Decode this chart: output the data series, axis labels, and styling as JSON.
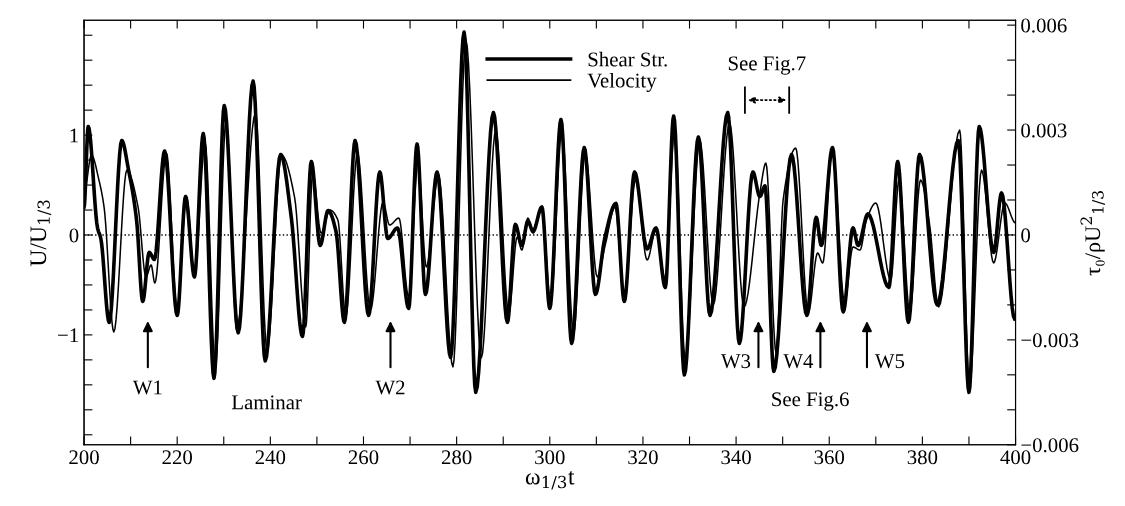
{
  "chart_data": {
    "type": "line",
    "xlabel": "ω$_{1/3}$t",
    "ylabel": "U/U$_{1/3}$",
    "y2label": "τ₀/ρU$^{2}$$_{1/3}$",
    "xlim": [
      200,
      400
    ],
    "xticks": [
      200,
      {
        "value": 210,
        "label": null
      },
      220,
      {
        "value": 230,
        "label": null
      },
      240,
      {
        "value": 250,
        "label": null
      },
      260,
      {
        "value": 270,
        "label": null
      },
      280,
      {
        "value": 290,
        "label": null
      },
      300,
      {
        "value": 310,
        "label": null
      },
      320,
      {
        "value": 330,
        "label": null
      },
      340,
      {
        "value": 350,
        "label": null
      },
      360,
      {
        "value": 370,
        "label": null
      },
      380,
      {
        "value": 390,
        "label": null
      },
      400
    ],
    "ylim": [
      -2.1,
      2.15
    ],
    "yticks": [
      {
        "value": -2,
        "label": null
      },
      {
        "value": -1.75,
        "label": null
      },
      {
        "value": -1.5,
        "label": null
      },
      {
        "value": -1.25,
        "label": null
      },
      {
        "value": -1,
        "label": "−1"
      },
      {
        "value": -0.75,
        "label": null
      },
      {
        "value": -0.5,
        "label": null
      },
      {
        "value": -0.25,
        "label": null
      },
      0,
      {
        "value": 0.25,
        "label": null
      },
      {
        "value": 0.5,
        "label": null
      },
      {
        "value": 0.75,
        "label": null
      },
      1,
      {
        "value": 1.25,
        "label": null
      },
      {
        "value": 1.5,
        "label": null
      },
      {
        "value": 1.75,
        "label": null
      },
      {
        "value": 2,
        "label": null
      }
    ],
    "y2lim": [
      -0.006,
      0.00614
    ],
    "y2ticks": [
      {
        "value": -0.006,
        "label": "−0.006"
      },
      {
        "value": -0.005,
        "label": null
      },
      {
        "value": -0.004,
        "label": null
      },
      {
        "value": -0.003,
        "label": "−0.003"
      },
      {
        "value": -0.002,
        "label": null
      },
      {
        "value": -0.001,
        "label": null
      },
      0,
      {
        "value": 0.001,
        "label": null
      },
      {
        "value": 0.002,
        "label": null
      },
      0.003,
      {
        "value": 0.004,
        "label": null
      },
      {
        "value": 0.005,
        "label": null
      },
      0.006
    ],
    "grid": false,
    "legend": "top",
    "marker": "none",
    "ref_lines": [
      {
        "axis": "y",
        "value": 0,
        "color": "#000000",
        "line_style": "dotted"
      }
    ],
    "series": [
      {
        "name": "Shear Str.",
        "color": "#000000",
        "axis": "y2",
        "line_style": "solid",
        "x": [
          200.0,
          200.9,
          202.9,
          203.6,
          205.4,
          208.1,
          209.5,
          211.3,
          212.6,
          214.0,
          215.1,
          217.3,
          220.0,
          221.8,
          223.7,
          225.6,
          227.9,
          230.1,
          233.1,
          236.3,
          238.9,
          242.2,
          244.5,
          246.9,
          248.8,
          250.7,
          252.4,
          254.1,
          255.9,
          258.2,
          261.1,
          263.5,
          265.2,
          267.3,
          269.7,
          271.5,
          273.3,
          275.8,
          278.7,
          281.6,
          284.1,
          287.9,
          290.9,
          292.6,
          294.0,
          295.3,
          296.4,
          298.3,
          300.0,
          302.4,
          304.7,
          307.4,
          309.8,
          311.8,
          314.2,
          316.0,
          318.2,
          320.9,
          322.8,
          324.8,
          326.6,
          328.9,
          331.9,
          334.4,
          338.2,
          340.7,
          343.6,
          345.1,
          346.2,
          348.1,
          351.9,
          355.2,
          357.2,
          358.3,
          360.7,
          363.0,
          365.1,
          366.2,
          368.3,
          372.8,
          374.7,
          377.0,
          379.4,
          383.2,
          387.7,
          390.0,
          392.2,
          395.3,
          397.0,
          399.8
        ],
        "values": [
          0.0008,
          0.0031,
          0.0002,
          -0.0001,
          -0.0025,
          0.0027,
          0.0019,
          0.0004,
          -0.0019,
          -0.0005,
          -0.0007,
          0.0024,
          -0.0023,
          0.0011,
          -0.0012,
          0.0029,
          -0.0041,
          0.0037,
          -0.0028,
          0.0044,
          -0.0036,
          0.0023,
          0.0005,
          -0.0029,
          0.0021,
          -0.0003,
          0.0007,
          0.0001,
          -0.0025,
          0.0027,
          -0.0023,
          0.0018,
          -0.0001,
          0.0002,
          -0.0021,
          0.0026,
          -0.0017,
          0.0018,
          -0.0035,
          0.0058,
          -0.0045,
          0.0035,
          -0.0025,
          0.0003,
          -0.0003,
          0.0004,
          0.0001,
          0.0008,
          -0.0021,
          0.0033,
          -0.0031,
          0.0025,
          -0.0017,
          -0.0001,
          0.0009,
          -0.0019,
          0.0018,
          -0.0004,
          0.0002,
          -0.0015,
          0.0034,
          -0.004,
          0.0028,
          -0.0023,
          0.0035,
          -0.0031,
          0.0018,
          0.0011,
          0.0014,
          -0.0039,
          0.0023,
          -0.0023,
          0.0005,
          -0.0003,
          0.0025,
          -0.0022,
          0.0002,
          -0.0003,
          0.0006,
          -0.0015,
          0.0021,
          -0.0025,
          0.0023,
          -0.002,
          0.0027,
          -0.0045,
          0.0031,
          -0.0005,
          0.0012,
          -0.0024
        ]
      },
      {
        "name": "Velocity",
        "color": "#000000",
        "line_style": "solid",
        "x": [
          200.0,
          201.6,
          203.2,
          204.3,
          206.4,
          209.2,
          211.6,
          213.3,
          214.4,
          215.2,
          217.7,
          220.0,
          222.0,
          223.7,
          226.0,
          228.2,
          230.5,
          232.8,
          236.8,
          239.3,
          242.4,
          245.2,
          247.6,
          249.1,
          250.9,
          252.8,
          254.5,
          256.2,
          258.7,
          261.5,
          264.2,
          265.6,
          267.6,
          269.7,
          271.7,
          273.5,
          276.1,
          279.2,
          282.0,
          285.3,
          288.4,
          291.2,
          293.0,
          294.0,
          295.3,
          296.4,
          298.3,
          300.2,
          302.6,
          305.1,
          307.6,
          310.2,
          312.0,
          314.0,
          316.0,
          318.4,
          320.9,
          322.8,
          324.8,
          326.8,
          329.1,
          332.2,
          335.1,
          338.6,
          341.7,
          345.2,
          346.4,
          348.6,
          350.1,
          352.8,
          355.5,
          357.5,
          358.6,
          360.7,
          363.3,
          365.1,
          366.6,
          368.0,
          370.0,
          373.2,
          375.0,
          377.3,
          379.6,
          381.5,
          383.5,
          388.0,
          390.1,
          392.7,
          395.3,
          397.7,
          400.0
        ],
        "values": [
          0.42,
          0.8,
          0.55,
          0.28,
          -0.97,
          0.65,
          0.28,
          -0.42,
          -0.3,
          -0.48,
          0.82,
          -0.75,
          0.38,
          -0.4,
          0.92,
          -1.32,
          1.15,
          -0.95,
          1.22,
          -1.15,
          0.8,
          0.38,
          -0.92,
          0.62,
          0.02,
          0.25,
          0.15,
          -0.82,
          0.82,
          -0.75,
          0.33,
          0.1,
          0.17,
          -0.62,
          0.72,
          -0.32,
          0.6,
          -1.32,
          1.95,
          -1.23,
          1.05,
          -0.78,
          -0.02,
          -0.15,
          0.17,
          0.02,
          0.27,
          -0.68,
          1.05,
          -0.98,
          0.82,
          -0.42,
          -0.08,
          0.28,
          -0.62,
          0.55,
          -0.25,
          0.05,
          -0.45,
          1.05,
          -1.25,
          0.95,
          -0.7,
          1.12,
          -0.72,
          0.45,
          0.72,
          -1.18,
          0.35,
          0.87,
          -0.78,
          -0.18,
          -0.28,
          0.87,
          -0.68,
          -0.12,
          -0.15,
          0.15,
          0.32,
          -0.45,
          0.55,
          -0.77,
          0.55,
          0.12,
          -0.72,
          1.05,
          -1.52,
          0.65,
          -0.28,
          0.32,
          0.12
        ]
      }
    ],
    "annotations": [
      "W1",
      "W2",
      "W3",
      "W4",
      "W5",
      "Laminar",
      "See Fig.6",
      "See Fig.7"
    ]
  }
}
